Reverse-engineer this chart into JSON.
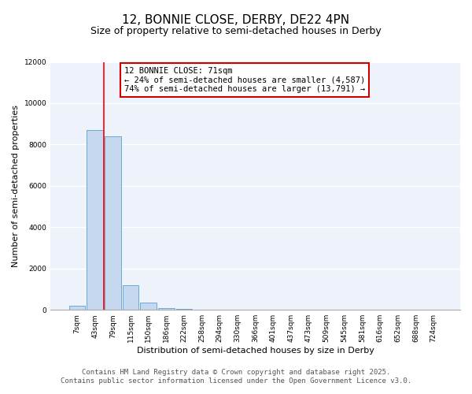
{
  "title": "12, BONNIE CLOSE, DERBY, DE22 4PN",
  "subtitle": "Size of property relative to semi-detached houses in Derby",
  "xlabel": "Distribution of semi-detached houses by size in Derby",
  "ylabel": "Number of semi-detached properties",
  "footer_line1": "Contains HM Land Registry data © Crown copyright and database right 2025.",
  "footer_line2": "Contains public sector information licensed under the Open Government Licence v3.0.",
  "categories": [
    "7sqm",
    "43sqm",
    "79sqm",
    "115sqm",
    "150sqm",
    "186sqm",
    "222sqm",
    "258sqm",
    "294sqm",
    "330sqm",
    "366sqm",
    "401sqm",
    "437sqm",
    "473sqm",
    "509sqm",
    "545sqm",
    "581sqm",
    "616sqm",
    "652sqm",
    "688sqm",
    "724sqm"
  ],
  "values": [
    200,
    8700,
    8400,
    1200,
    350,
    100,
    50,
    5,
    5,
    5,
    5,
    5,
    5,
    5,
    5,
    5,
    5,
    5,
    5,
    5,
    5
  ],
  "bar_color": "#c5d8f0",
  "bar_edge_color": "#6aaad4",
  "red_line_x": 1.5,
  "annotation_text": "12 BONNIE CLOSE: 71sqm\n← 24% of semi-detached houses are smaller (4,587)\n74% of semi-detached houses are larger (13,791) →",
  "annotation_box_color": "#ffffff",
  "annotation_border_color": "#cc0000",
  "ylim": [
    0,
    12000
  ],
  "background_color": "#eef2fb",
  "grid_color": "#ffffff",
  "title_fontsize": 11,
  "subtitle_fontsize": 9,
  "axis_label_fontsize": 8,
  "tick_fontsize": 6.5,
  "footer_fontsize": 6.5,
  "annot_fontsize": 7.5
}
